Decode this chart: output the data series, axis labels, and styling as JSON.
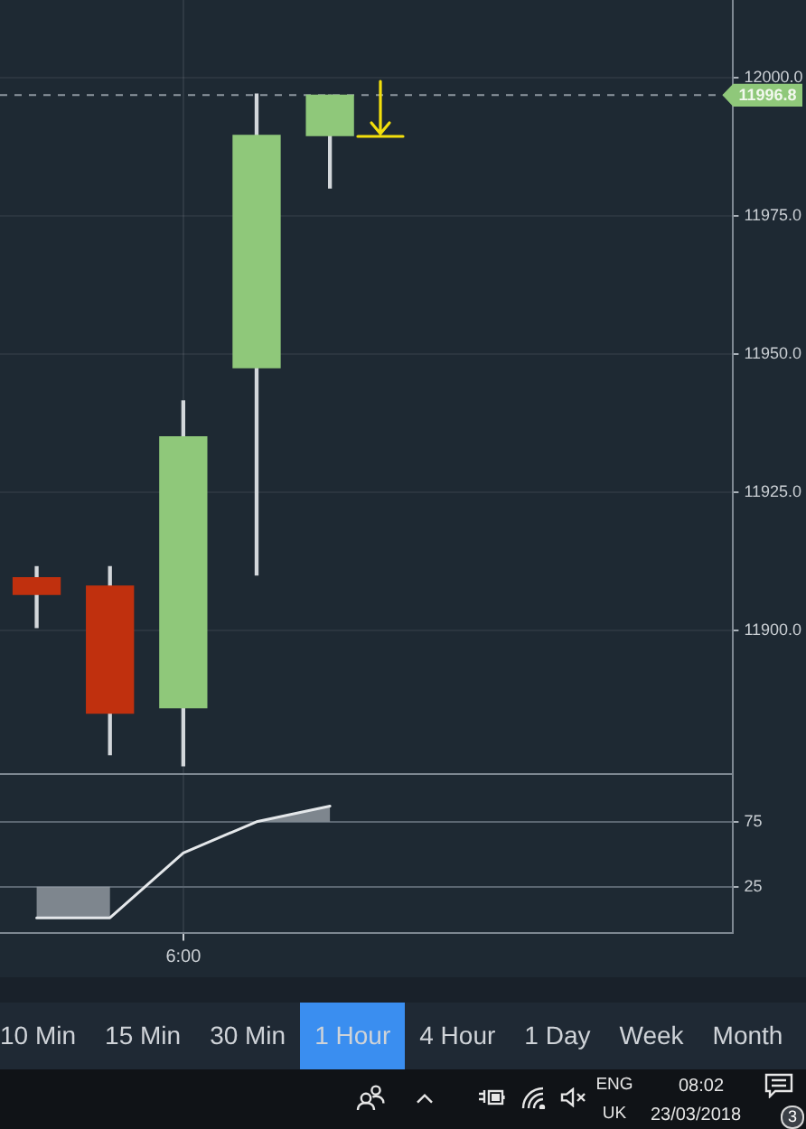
{
  "chart_data": [
    {
      "type": "candlestick",
      "categories": [
        null,
        null,
        null,
        null,
        null,
        null,
        null,
        null,
        null,
        null
      ],
      "ohlc": [
        [
          11909.5,
          11911.5,
          11900.5,
          11906.5
        ],
        [
          11908,
          11911.5,
          11877.5,
          11885
        ],
        [
          11886,
          11941.5,
          11875.5,
          11935
        ],
        [
          11947.5,
          11997,
          11910,
          11989.5
        ],
        [
          11989.5,
          11996.8,
          11980,
          11996.8
        ],
        null,
        null,
        null,
        null,
        null
      ],
      "colors": [
        "#c0300e",
        "#c0300e",
        "#8fc87a",
        "#8fc87a",
        "#8fc87a",
        null,
        null,
        null,
        null,
        null
      ],
      "ylim": [
        11874,
        12014
      ],
      "yticks": [
        {
          "value": 11900,
          "label": "11900.0"
        },
        {
          "value": 11925,
          "label": "11925.0"
        },
        {
          "value": 11950,
          "label": "11950.0"
        },
        {
          "value": 11975,
          "label": "11975.0"
        },
        {
          "value": 12000,
          "label": "12000.0"
        }
      ],
      "ref_lines": [
        {
          "axis": "y",
          "value": 11996.8,
          "label": "11996.8",
          "line_style": "dashed"
        }
      ],
      "grid": true,
      "tick_labels": "y"
    },
    {
      "type": "line",
      "categories": [
        null,
        null,
        "6:00",
        null,
        null,
        null,
        null,
        null,
        null,
        null
      ],
      "series": [
        {
          "color": "#e4e7ea",
          "values": [
            1,
            1,
            51,
            75,
            87,
            null,
            null,
            null,
            null,
            null
          ],
          "lower": [
            1,
            1,
            null,
            75,
            75,
            null,
            null,
            null,
            null,
            null
          ],
          "upper": [
            25,
            25,
            null,
            75,
            87,
            null,
            null,
            null,
            null,
            null
          ]
        }
      ],
      "ylim": [
        -11,
        111
      ],
      "yticks": [
        25,
        75
      ],
      "grid": true
    },
    {
      "type": "other",
      "categories": [
        "10 Min",
        "15 Min",
        "30 Min",
        "1 Hour",
        "4 Hour",
        "1 Day",
        "Week",
        "Month"
      ],
      "colors": [
        "#1f2934",
        "#1f2934",
        "#1f2934",
        "#3a8ef0",
        "#1f2934",
        "#1f2934",
        "#1f2934",
        "#1f2934"
      ],
      "annotations": [
        "ENG",
        "UK",
        "08:02",
        "23/03/2018",
        "3"
      ]
    }
  ]
}
